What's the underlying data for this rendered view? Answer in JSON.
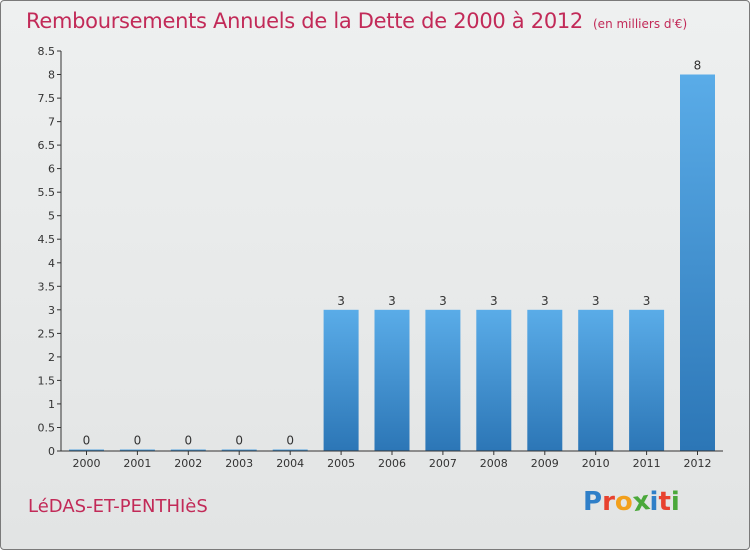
{
  "title": "Remboursements Annuels de la Dette de 2000 à 2012",
  "subtitle": "(en milliers d'€)",
  "place_name": "LéDAS-ET-PENTHIèS",
  "brand": {
    "letters": [
      {
        "char": "P",
        "color": "#2f7fc8"
      },
      {
        "char": "r",
        "color": "#e8422f"
      },
      {
        "char": "o",
        "color": "#f2a01c"
      },
      {
        "char": "x",
        "color": "#4aa83a"
      },
      {
        "char": "i",
        "color": "#2f7fc8"
      },
      {
        "char": "t",
        "color": "#e8422f"
      },
      {
        "char": "i",
        "color": "#4aa83a"
      }
    ]
  },
  "colors": {
    "bar_light": "#5aace8",
    "bar_dark": "#2c76b6",
    "axis": "#333333",
    "title": "#c22a58"
  },
  "chart_data": {
    "type": "bar",
    "categories": [
      "2000",
      "2001",
      "2002",
      "2003",
      "2004",
      "2005",
      "2006",
      "2007",
      "2008",
      "2009",
      "2010",
      "2011",
      "2012"
    ],
    "values": [
      0,
      0,
      0,
      0,
      0,
      3,
      3,
      3,
      3,
      3,
      3,
      3,
      8
    ],
    "value_labels": [
      "0",
      "0",
      "0",
      "0",
      "0",
      "3",
      "3",
      "3",
      "3",
      "3",
      "3",
      "3",
      "8"
    ],
    "ylim": [
      0,
      8.5
    ],
    "yticks": [
      0,
      0.5,
      1,
      1.5,
      2,
      2.5,
      3,
      3.5,
      4,
      4.5,
      5,
      5.5,
      6,
      6.5,
      7,
      7.5,
      8,
      8.5
    ],
    "ytick_labels": [
      "0",
      "0.5",
      "1",
      "1.5",
      "2",
      "2.5",
      "3",
      "3.5",
      "4",
      "4.5",
      "5",
      "5.5",
      "6",
      "6.5",
      "7",
      "7.5",
      "8",
      "8.5"
    ],
    "xlabel": "",
    "ylabel": "",
    "grid": false,
    "legend": "none"
  }
}
